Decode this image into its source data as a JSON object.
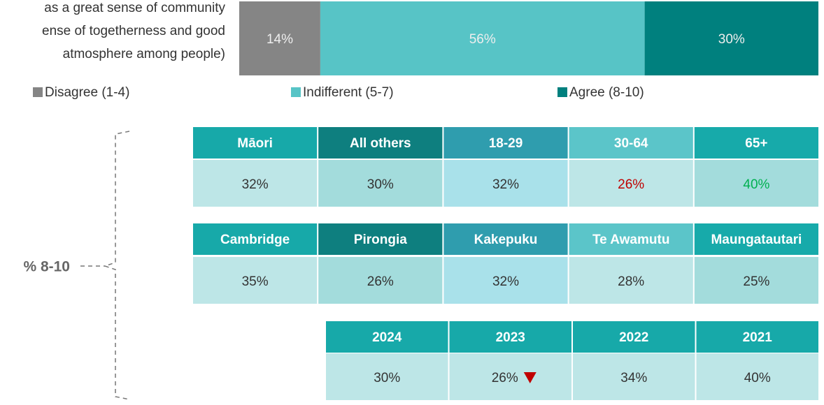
{
  "chart_data": {
    "type": "bar",
    "orientation": "horizontal",
    "stacked": true,
    "categories": [
      [
        "as a great sense of community",
        "ense of togetherness and good",
        "atmosphere among people)"
      ]
    ],
    "xlim": [
      0,
      100
    ],
    "series": [
      {
        "name": "Disagree (1-4)",
        "color": "#858585",
        "values": [
          14
        ],
        "value_labels": [
          "14%"
        ]
      },
      {
        "name": "Indifferent (5-7)",
        "color": "#57c4c6",
        "values": [
          56
        ],
        "value_labels": [
          "56%"
        ]
      },
      {
        "name": "Agree (8-10)",
        "color": "#00807e",
        "values": [
          30
        ],
        "value_labels": [
          "30%"
        ]
      }
    ],
    "legend": "bottom"
  },
  "tables": {
    "label": "% 8-10",
    "groups": [
      {
        "cells": [
          {
            "header": "Māori",
            "value": "32%",
            "header_color": "#17a9a9",
            "cell_color": "#bde6e7"
          },
          {
            "header": "All others",
            "value": "30%",
            "header_color": "#0e7f7f",
            "cell_color": "#a3dcdc"
          },
          {
            "header": "18-29",
            "value": "32%",
            "header_color": "#2f9dae",
            "cell_color": "#a9e1ea"
          },
          {
            "header": "30-64",
            "value": "26%",
            "header_color": "#5bc5c9",
            "cell_color": "#bde6e7",
            "value_color": "#c00000"
          },
          {
            "header": "65+",
            "value": "40%",
            "header_color": "#17aaaa",
            "cell_color": "#a3dcdc",
            "value_color": "#00b050"
          }
        ]
      },
      {
        "cells": [
          {
            "header": "Cambridge",
            "value": "35%",
            "header_color": "#17a9a9",
            "cell_color": "#bde6e7"
          },
          {
            "header": "Pirongia",
            "value": "26%",
            "header_color": "#0e7f7f",
            "cell_color": "#a3dcdc"
          },
          {
            "header": "Kakepuku",
            "value": "32%",
            "header_color": "#2f9dae",
            "cell_color": "#a9e1ea"
          },
          {
            "header": "Te Awamutu",
            "value": "28%",
            "header_color": "#5bc5c9",
            "cell_color": "#bde6e7"
          },
          {
            "header": "Maungatautari",
            "value": "25%",
            "header_color": "#17aaaa",
            "cell_color": "#a3dcdc"
          }
        ]
      },
      {
        "cells": [
          {
            "header": "2024",
            "value": "30%",
            "header_color": "#17a9a9",
            "cell_color": "#bde6e7"
          },
          {
            "header": "2023",
            "value": "26%",
            "header_color": "#17a9a9",
            "cell_color": "#bde6e7",
            "marker": "down"
          },
          {
            "header": "2022",
            "value": "34%",
            "header_color": "#17a9a9",
            "cell_color": "#bde6e7"
          },
          {
            "header": "2021",
            "value": "40%",
            "header_color": "#17a9a9",
            "cell_color": "#bde6e7"
          }
        ]
      }
    ]
  }
}
